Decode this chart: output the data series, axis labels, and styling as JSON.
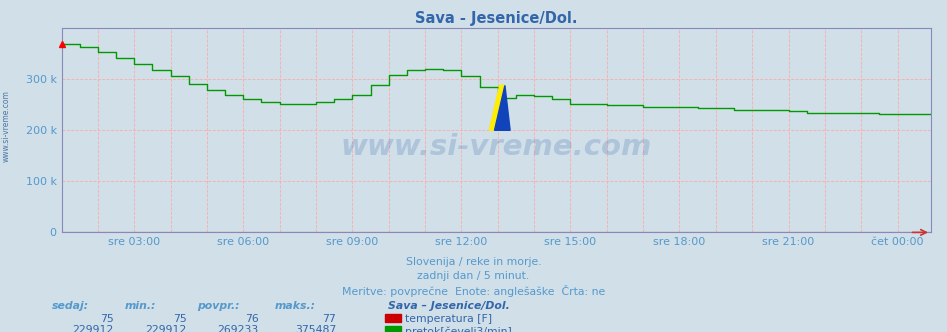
{
  "title": "Sava - Jesenice/Dol.",
  "bg_color": "#d0dfe8",
  "plot_bg_color": "#d0dfe8",
  "grid_color": "#ee9999",
  "line_color_flow": "#009900",
  "line_color_temp": "#cc0000",
  "axis_color": "#8888bb",
  "text_color": "#5599cc",
  "title_color": "#3366aa",
  "x_tick_labels": [
    "sre 03:00",
    "sre 06:00",
    "sre 09:00",
    "sre 12:00",
    "sre 15:00",
    "sre 18:00",
    "sre 21:00",
    "čet 00:00"
  ],
  "y_tick_labels": [
    "0",
    "100 k",
    "200 k",
    "300 k"
  ],
  "y_tick_values": [
    0,
    100000,
    200000,
    300000
  ],
  "ylim": [
    0,
    400000
  ],
  "subtitle_lines": [
    "Slovenija / reke in morje.",
    "zadnji dan / 5 minut.",
    "Meritve: povprečne  Enote: anglešaške  Črta: ne"
  ],
  "table_headers": [
    "sedaj:",
    "min.:",
    "povpr.:",
    "maks.:"
  ],
  "table_row1_vals": [
    "75",
    "75",
    "76",
    "77"
  ],
  "table_row2_vals": [
    "229912",
    "229912",
    "269233",
    "375487"
  ],
  "legend_title": "Sava – Jesenice/Dol.",
  "legend_items": [
    {
      "label": "temperatura [F]",
      "color": "#cc0000"
    },
    {
      "label": "pretok[čevelj3/min]",
      "color": "#009900"
    }
  ],
  "watermark": "www.si-vreme.com",
  "left_watermark": "www.si-vreme.com",
  "num_points": 288,
  "temp_value": 75
}
